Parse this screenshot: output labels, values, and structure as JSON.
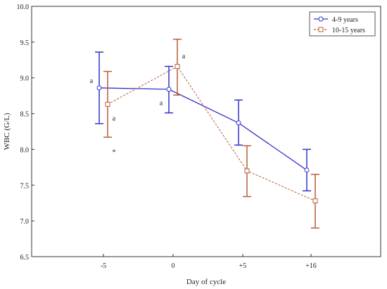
{
  "chart_data": {
    "type": "line",
    "xlabel": "Day of cycle",
    "ylabel": "WBC (G/L)",
    "categories": [
      "-5",
      "0",
      "+5",
      "+16"
    ],
    "ylim": [
      6.5,
      10.0
    ],
    "yticks": [
      "6.5",
      "7.0",
      "7.5",
      "8.0",
      "8.5",
      "9.0",
      "9.5",
      "10.0"
    ],
    "grid": false,
    "legend_position": "top-right",
    "series": [
      {
        "name": "4-9 years",
        "color": "#3333cc",
        "line_style": "solid",
        "marker": "circle",
        "values": [
          8.86,
          8.84,
          8.37,
          7.71
        ],
        "err_low": [
          8.36,
          8.51,
          8.06,
          7.42
        ],
        "err_high": [
          9.36,
          9.16,
          8.69,
          8.0
        ]
      },
      {
        "name": "10-15 years",
        "color": "#b85c38",
        "line_style": "dashed",
        "marker": "square",
        "values": [
          8.63,
          9.16,
          7.7,
          7.28
        ],
        "err_low": [
          8.17,
          8.76,
          7.34,
          6.9
        ],
        "err_high": [
          9.09,
          9.54,
          8.05,
          7.65
        ]
      }
    ],
    "annotations": [
      {
        "text": "a",
        "x_index": 0,
        "y": 8.97,
        "side": "left"
      },
      {
        "text": "a",
        "x_index": 0,
        "y": 8.44,
        "side": "right"
      },
      {
        "text": "*",
        "x_index": 0,
        "y": 7.97,
        "side": "right"
      },
      {
        "text": "a",
        "x_index": 1,
        "y": 8.66,
        "side": "left"
      },
      {
        "text": "a",
        "x_index": 1,
        "y": 9.31,
        "side": "right"
      }
    ]
  }
}
